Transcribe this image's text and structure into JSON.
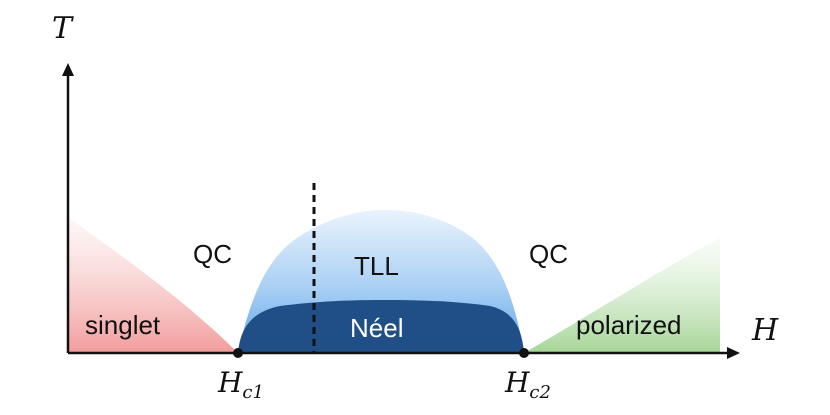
{
  "axes": {
    "x_label": "H",
    "y_label": "T",
    "hc1_label_main": "H",
    "hc1_label_sub": "c1",
    "hc2_label_main": "H",
    "hc2_label_sub": "c2"
  },
  "regions": {
    "singlet": "singlet",
    "qc_left": "QC",
    "qc_right": "QC",
    "tll": "TLL",
    "neel": "Néel",
    "polarized": "polarized"
  },
  "colors": {
    "singlet": "#f08a8a",
    "polarized": "#9bd08b",
    "tll_top": "#eaf3fd",
    "tll_bottom": "#5aa7ea",
    "neel": "#1f4f86",
    "axis": "#111111"
  }
}
